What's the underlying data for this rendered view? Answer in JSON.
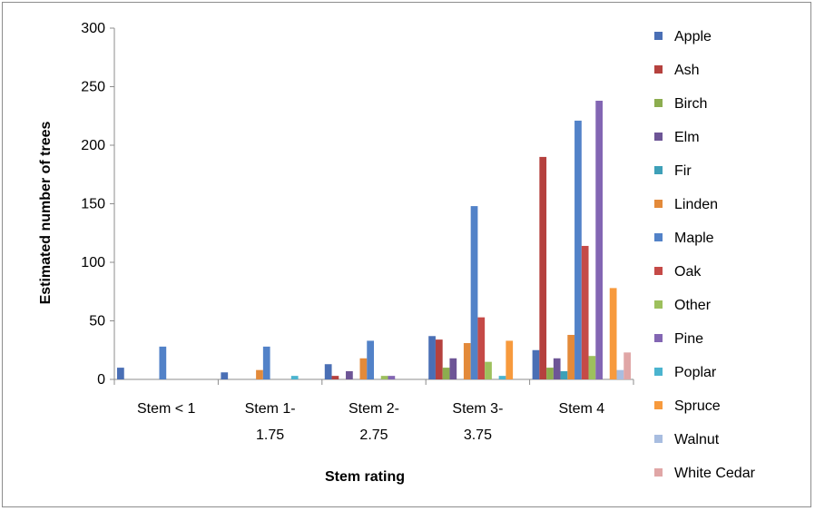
{
  "chart_data": {
    "type": "bar",
    "title": "",
    "xlabel": "Stem rating",
    "ylabel": "Estimated number of trees",
    "ylim": [
      0,
      300
    ],
    "yticks": [
      "0",
      "50",
      "100",
      "150",
      "200",
      "250",
      "300"
    ],
    "categories": [
      [
        "Stem < 1"
      ],
      [
        "Stem 1-",
        "1.75"
      ],
      [
        "Stem 2-",
        "2.75"
      ],
      [
        "Stem 3-",
        "3.75"
      ],
      [
        "Stem 4"
      ]
    ],
    "legend_position": "right",
    "grid": false,
    "series": [
      {
        "name": "Apple",
        "color": "#4a6fb5",
        "values": [
          10,
          6,
          13,
          37,
          25
        ]
      },
      {
        "name": "Ash",
        "color": "#b5413e",
        "values": [
          0,
          0,
          3,
          34,
          190
        ]
      },
      {
        "name": "Birch",
        "color": "#8cad4f",
        "values": [
          0,
          0,
          0,
          10,
          10
        ]
      },
      {
        "name": "Elm",
        "color": "#6d5596",
        "values": [
          0,
          0,
          7,
          18,
          18
        ]
      },
      {
        "name": "Fir",
        "color": "#3ea0b8",
        "values": [
          0,
          0,
          0,
          0,
          7
        ]
      },
      {
        "name": "Linden",
        "color": "#e38a3a",
        "values": [
          0,
          8,
          18,
          31,
          38
        ]
      },
      {
        "name": "Maple",
        "color": "#5282c8",
        "values": [
          28,
          28,
          33,
          148,
          221
        ]
      },
      {
        "name": "Oak",
        "color": "#c54a47",
        "values": [
          0,
          0,
          0,
          53,
          114
        ]
      },
      {
        "name": "Other",
        "color": "#9dc05d",
        "values": [
          0,
          0,
          3,
          15,
          20
        ]
      },
      {
        "name": "Pine",
        "color": "#8366b3",
        "values": [
          0,
          0,
          3,
          0,
          238
        ]
      },
      {
        "name": "Poplar",
        "color": "#4bb4cf",
        "values": [
          0,
          3,
          0,
          3,
          0
        ]
      },
      {
        "name": "Spruce",
        "color": "#f79a3d",
        "values": [
          0,
          0,
          0,
          33,
          78
        ]
      },
      {
        "name": "Walnut",
        "color": "#a8bde0",
        "values": [
          0,
          0,
          0,
          0,
          8
        ]
      },
      {
        "name": "White Cedar",
        "color": "#e0a6a6",
        "values": [
          0,
          0,
          0,
          0,
          23
        ]
      }
    ]
  }
}
